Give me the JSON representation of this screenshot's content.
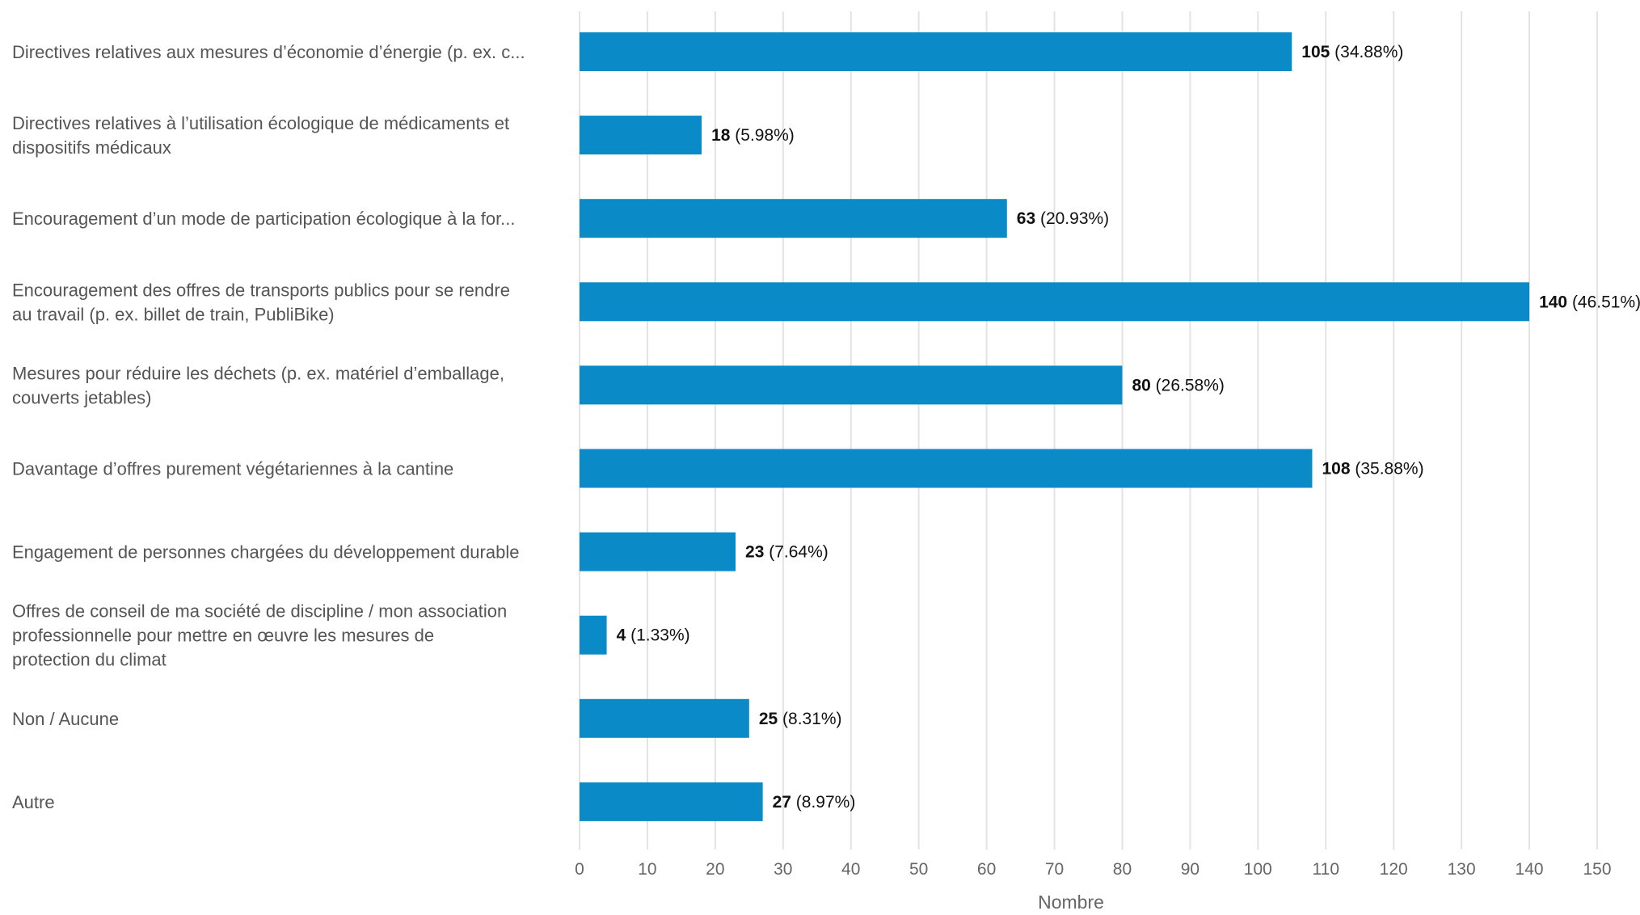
{
  "chart_data": {
    "type": "bar",
    "orientation": "horizontal",
    "categories": [
      [
        "Directives relatives aux mesures d’économie d’énergie (p. ex. c..."
      ],
      [
        "Directives relatives à l’utilisation écologique de médicaments et",
        "dispositifs médicaux"
      ],
      [
        "Encouragement d’un mode de participation écologique à la for..."
      ],
      [
        "Encouragement des offres de transports publics pour se rendre",
        "au travail (p. ex. billet de train, PubliBike)"
      ],
      [
        "Mesures pour réduire les déchets (p. ex. matériel d’emballage,",
        "couverts jetables)"
      ],
      [
        "Davantage d’offres purement végétariennes à la cantine"
      ],
      [
        "Engagement de personnes chargées du développement durable"
      ],
      [
        "Offres de conseil de ma société de discipline / mon association",
        "professionnelle pour mettre en œuvre les mesures de",
        "protection du climat"
      ],
      [
        "Non / Aucune"
      ],
      [
        "Autre"
      ]
    ],
    "values": [
      105,
      18,
      63,
      140,
      80,
      108,
      23,
      4,
      25,
      27
    ],
    "percent_labels": [
      "(34.88%)",
      "(5.98%)",
      "(20.93%)",
      "(46.51%)",
      "(26.58%)",
      "(35.88%)",
      "(7.64%)",
      "(1.33%)",
      "(8.31%)",
      "(8.97%)"
    ],
    "xlabel": "Nombre",
    "xlim": [
      0,
      150
    ],
    "xticks": [
      0,
      10,
      20,
      30,
      40,
      50,
      60,
      70,
      80,
      90,
      100,
      110,
      120,
      130,
      140,
      150
    ],
    "grid": true,
    "bar_color": "#0a8ac6",
    "grid_color": "#e3e3e3"
  }
}
